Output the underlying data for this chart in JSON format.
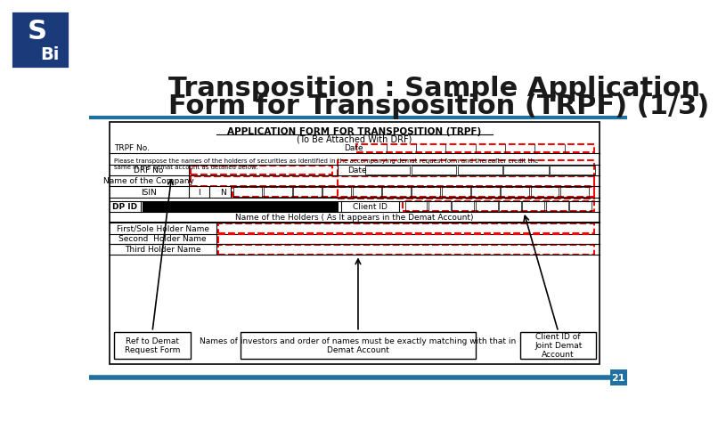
{
  "title_line1": "Transposition : Sample Application",
  "title_line2": "Form for Transposition (TRPF) (1/3)",
  "title_color": "#1a1a1a",
  "title_fontsize": 22,
  "header_bar_color": "#2070a0",
  "background_color": "#ffffff",
  "form_title": "APPLICATION FORM FOR TRANSPOSITION (TRPF)",
  "form_subtitle": "(To Be Attached With DRF)",
  "annotation1": "Ref to Demat\nRequest Form",
  "annotation2": "Names of investors and order of names must be exactly matching with that in\nDemat Account",
  "annotation3": "Client ID of\nJoint Demat\nAccount",
  "page_number": "21",
  "sebi_logo_color": "#1a3a7a"
}
